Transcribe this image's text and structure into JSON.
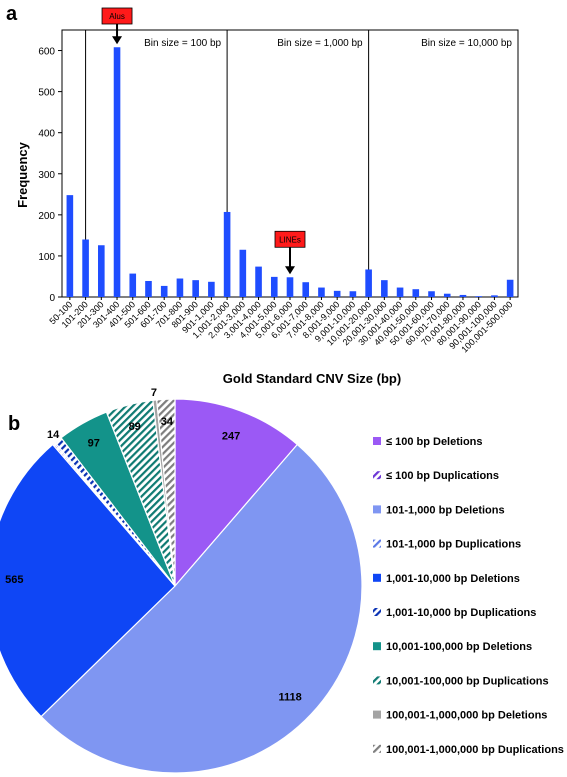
{
  "panel_a": {
    "label": "a"
  },
  "panel_b": {
    "label": "b"
  },
  "colors": {
    "bar": "#1f4dff",
    "del_small": "#9b59f5",
    "dup_small": "#6b35d6",
    "del_mid": "#7f96f2",
    "dup_mid": "#5a78e6",
    "del_large": "#0f46f5",
    "dup_large": "#0a32b4",
    "del_xl": "#13938a",
    "dup_xl": "#0e7a72",
    "del_xxl": "#a4a4a4",
    "dup_xxl": "#7e7e7e",
    "callout": "#ff1a1a"
  },
  "chart_data": [
    {
      "type": "bar",
      "title": "",
      "xlabel": "Gold Standard CNV Size (bp)",
      "ylabel": "Frequency",
      "ylim": [
        0,
        650
      ],
      "yticks": [
        0,
        100,
        200,
        300,
        400,
        500,
        600
      ],
      "grid": false,
      "categories": [
        "50-100",
        "101-200",
        "201-300",
        "301-400",
        "401-500",
        "501-600",
        "601-700",
        "701-800",
        "801-900",
        "901-1,000",
        "1,001-2,000",
        "2,001-3,000",
        "3,001-4,000",
        "4,001-5,000",
        "5,001-6,000",
        "6,001-7,000",
        "7,001-8,000",
        "8,001-9,000",
        "9,001-10,000",
        "10,001-20,000",
        "20,001-30,000",
        "30,001-40,000",
        "40,001-50,000",
        "50,001-60,000",
        "60,001-70,000",
        "70,001-80,000",
        "80,001-90,000",
        "90,001-100,000",
        "100,001-500,000"
      ],
      "values": [
        248,
        140,
        126,
        608,
        57,
        39,
        27,
        45,
        41,
        37,
        207,
        115,
        74,
        49,
        48,
        36,
        23,
        15,
        14,
        67,
        41,
        23,
        19,
        14,
        8,
        5,
        2,
        4,
        42
      ],
      "sections": [
        {
          "label": "Bin size = 100 bp",
          "from": 1,
          "to": 9
        },
        {
          "label": "Bin size = 1,000 bp",
          "from": 10,
          "to": 18
        },
        {
          "label": "Bin size = 10,000 bp",
          "from": 19,
          "to": 27
        }
      ],
      "annotations": [
        {
          "label": "Alus",
          "category_index": 3
        },
        {
          "label": "LINEs",
          "category_index": 14
        }
      ]
    },
    {
      "type": "pie",
      "title": "",
      "legend_position": "right",
      "slices": [
        {
          "label": "≤ 100 bp Deletions",
          "value": 247,
          "color_key": "del_small",
          "hatched": false,
          "value_label": "247"
        },
        {
          "label": "101-1,000 bp Deletions",
          "value": 1118,
          "color_key": "del_mid",
          "hatched": false,
          "value_label": "1118"
        },
        {
          "label": "1,001-10,000 bp Deletions",
          "value": 565,
          "color_key": "del_large",
          "hatched": false,
          "value_label": "565"
        },
        {
          "label": "≤ 100 bp Duplications",
          "value": 3,
          "color_key": "dup_small",
          "hatched": true,
          "value_label": ""
        },
        {
          "label": "101-1,000 bp Duplications",
          "value": 3,
          "color_key": "dup_mid",
          "hatched": true,
          "value_label": ""
        },
        {
          "label": "1,001-10,000 bp Duplications",
          "value": 14,
          "color_key": "dup_large",
          "hatched": true,
          "value_label": "14"
        },
        {
          "label": "10,001-100,000 bp Deletions",
          "value": 97,
          "color_key": "del_xl",
          "hatched": false,
          "value_label": "97"
        },
        {
          "label": "10,001-100,000 bp Duplications",
          "value": 89,
          "color_key": "dup_xl",
          "hatched": true,
          "value_label": "89"
        },
        {
          "label": "100,001-1,000,000 bp Deletions",
          "value": 7,
          "color_key": "del_xxl",
          "hatched": false,
          "value_label": "7"
        },
        {
          "label": "100,001-1,000,000 bp Duplications",
          "value": 34,
          "color_key": "dup_xxl",
          "hatched": true,
          "value_label": "34"
        }
      ],
      "legend": [
        {
          "label": "≤ 100 bp Deletions",
          "color_key": "del_small",
          "hatched": false
        },
        {
          "label": "≤ 100 bp Duplications",
          "color_key": "dup_small",
          "hatched": true
        },
        {
          "label": "101-1,000 bp Deletions",
          "color_key": "del_mid",
          "hatched": false
        },
        {
          "label": "101-1,000 bp Duplications",
          "color_key": "dup_mid",
          "hatched": true
        },
        {
          "label": "1,001-10,000 bp Deletions",
          "color_key": "del_large",
          "hatched": false
        },
        {
          "label": "1,001-10,000 bp Duplications",
          "color_key": "dup_large",
          "hatched": true
        },
        {
          "label": "10,001-100,000 bp Deletions",
          "color_key": "del_xl",
          "hatched": false
        },
        {
          "label": "10,001-100,000 bp Duplications",
          "color_key": "dup_xl",
          "hatched": true
        },
        {
          "label": "100,001-1,000,000 bp Deletions",
          "color_key": "del_xxl",
          "hatched": false
        },
        {
          "label": "100,001-1,000,000 bp Duplications",
          "color_key": "dup_xxl",
          "hatched": true
        }
      ]
    }
  ]
}
